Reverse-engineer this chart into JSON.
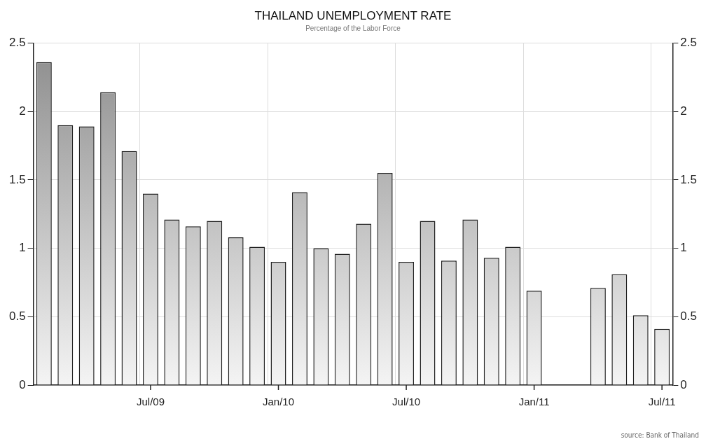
{
  "chart_data": {
    "type": "bar",
    "title": "THAILAND UNEMPLOYMENT RATE",
    "subtitle": "Percentage of the Labor Force",
    "categories": [
      null,
      null,
      null,
      null,
      null,
      "Jul/09",
      null,
      null,
      null,
      null,
      null,
      "Jan/10",
      null,
      null,
      null,
      null,
      null,
      "Jul/10",
      null,
      null,
      null,
      null,
      null,
      "Jan/11",
      null,
      null,
      null,
      null,
      null,
      "Jul/11"
    ],
    "values": [
      2.36,
      1.9,
      1.89,
      2.14,
      1.71,
      1.4,
      1.21,
      1.16,
      1.2,
      1.08,
      1.01,
      0.9,
      1.41,
      1.0,
      0.96,
      1.18,
      1.55,
      0.9,
      1.2,
      0.91,
      1.21,
      0.93,
      1.01,
      0.69,
      null,
      null,
      0.71,
      0.81,
      0.51,
      0.41
    ],
    "color": "#8c8c8c",
    "ylim": [
      0,
      2.5
    ],
    "yticks": [
      0,
      0.5,
      1,
      1.5,
      2,
      2.5
    ],
    "y2lim": [
      0,
      2.5
    ],
    "y2ticks": [
      0,
      0.5,
      1,
      1.5,
      2,
      2.5
    ],
    "grid": true,
    "annotations": [
      "source: Bank of Thailand"
    ]
  }
}
